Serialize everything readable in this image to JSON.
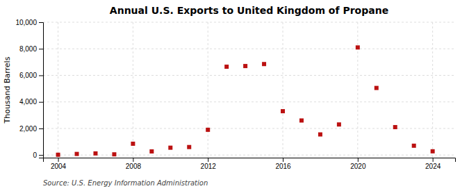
{
  "chart_data": {
    "type": "scatter",
    "title": "Annual U.S. Exports to United Kingdom of Propane",
    "ylabel": "Thousand Barrels",
    "annotations": [
      "Source: U.S. Energy Information Administration"
    ],
    "x": [
      2004,
      2005,
      2006,
      2007,
      2008,
      2009,
      2010,
      2011,
      2012,
      2013,
      2014,
      2015,
      2016,
      2017,
      2018,
      2019,
      2020,
      2021,
      2022,
      2023,
      2024
    ],
    "values": [
      20,
      80,
      120,
      50,
      850,
      270,
      550,
      600,
      1900,
      6650,
      6700,
      6850,
      3300,
      2600,
      1550,
      2300,
      8100,
      5050,
      2100,
      700,
      280
    ],
    "color": "#bb1111",
    "marker": "square",
    "xlim": [
      2003.2,
      2025.2
    ],
    "ylim": [
      -200,
      10000
    ],
    "xticks": [
      2004,
      2008,
      2012,
      2016,
      2020,
      2024
    ],
    "yticks": [
      0,
      {
        "value": 2000,
        "label": "2,000"
      },
      {
        "value": 4000,
        "label": "4,000"
      },
      {
        "value": 6000,
        "label": "6,000"
      },
      {
        "value": 8000,
        "label": "8,000"
      },
      {
        "value": 10000,
        "label": "10,000"
      }
    ],
    "grid": true
  }
}
